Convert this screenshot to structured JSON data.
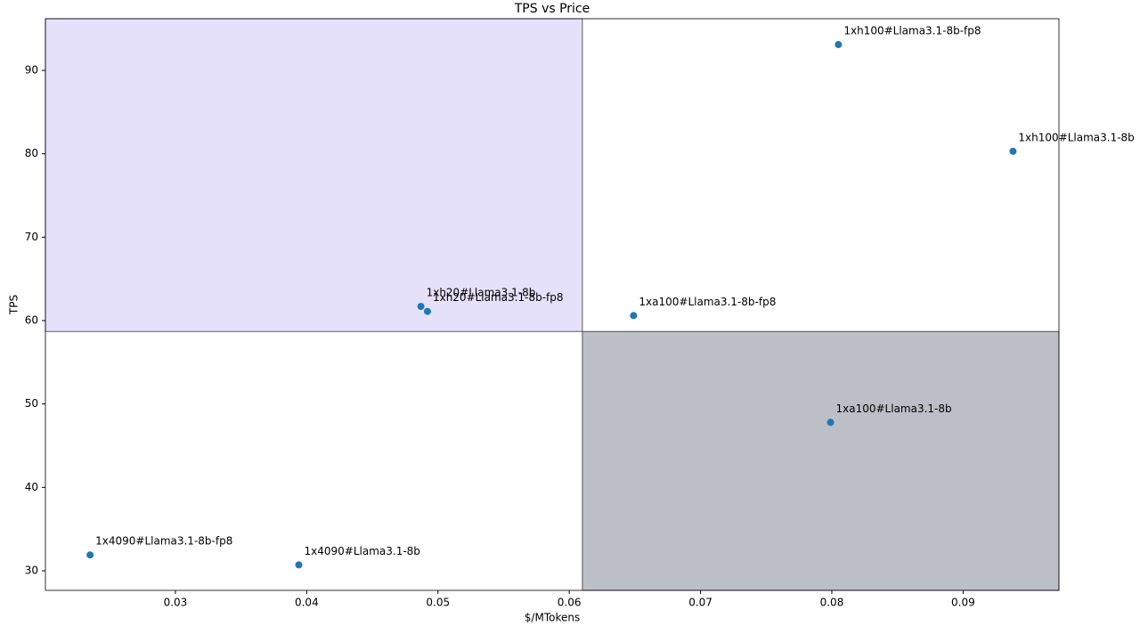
{
  "chart_data": {
    "type": "scatter",
    "title": "TPS vs Price",
    "x_label": "$/MTokens",
    "y_label": "TPS",
    "labels": [
      "1xh100#Llama3.1-8b-fp8",
      "1xh100#Llama3.1-8b",
      "1xh20#Llama3.1-8b",
      "1xh20#Llama3.1-8b-fp8",
      "1xa100#Llama3.1-8b-fp8",
      "1xa100#Llama3.1-8b",
      "1x4090#Llama3.1-8b-fp8",
      "1x4090#Llama3.1-8b"
    ],
    "x": [
      0.0805,
      0.0938,
      0.0487,
      0.0492,
      0.0649,
      0.0799,
      0.0235,
      0.0394
    ],
    "values": [
      93.1,
      80.3,
      61.7,
      61.1,
      60.6,
      47.8,
      31.9,
      30.7
    ],
    "color": "#1f77b4",
    "xlim": [
      0.0201,
      0.0973
    ],
    "ylim": [
      27.65,
      96.2
    ],
    "xticks": [
      0.03,
      0.04,
      0.05,
      0.06,
      0.07,
      0.08,
      0.09
    ],
    "yticks": [
      30,
      40,
      50,
      60,
      70,
      80,
      90
    ],
    "regions": [
      {
        "xlim": [
          0.0201,
          0.061
        ],
        "ylim": [
          58.7,
          96.2
        ],
        "color": "#e6e1fa"
      },
      {
        "xlim": [
          0.061,
          0.0973
        ],
        "ylim": [
          27.65,
          58.7
        ],
        "color": "#bcbfc6"
      }
    ]
  }
}
